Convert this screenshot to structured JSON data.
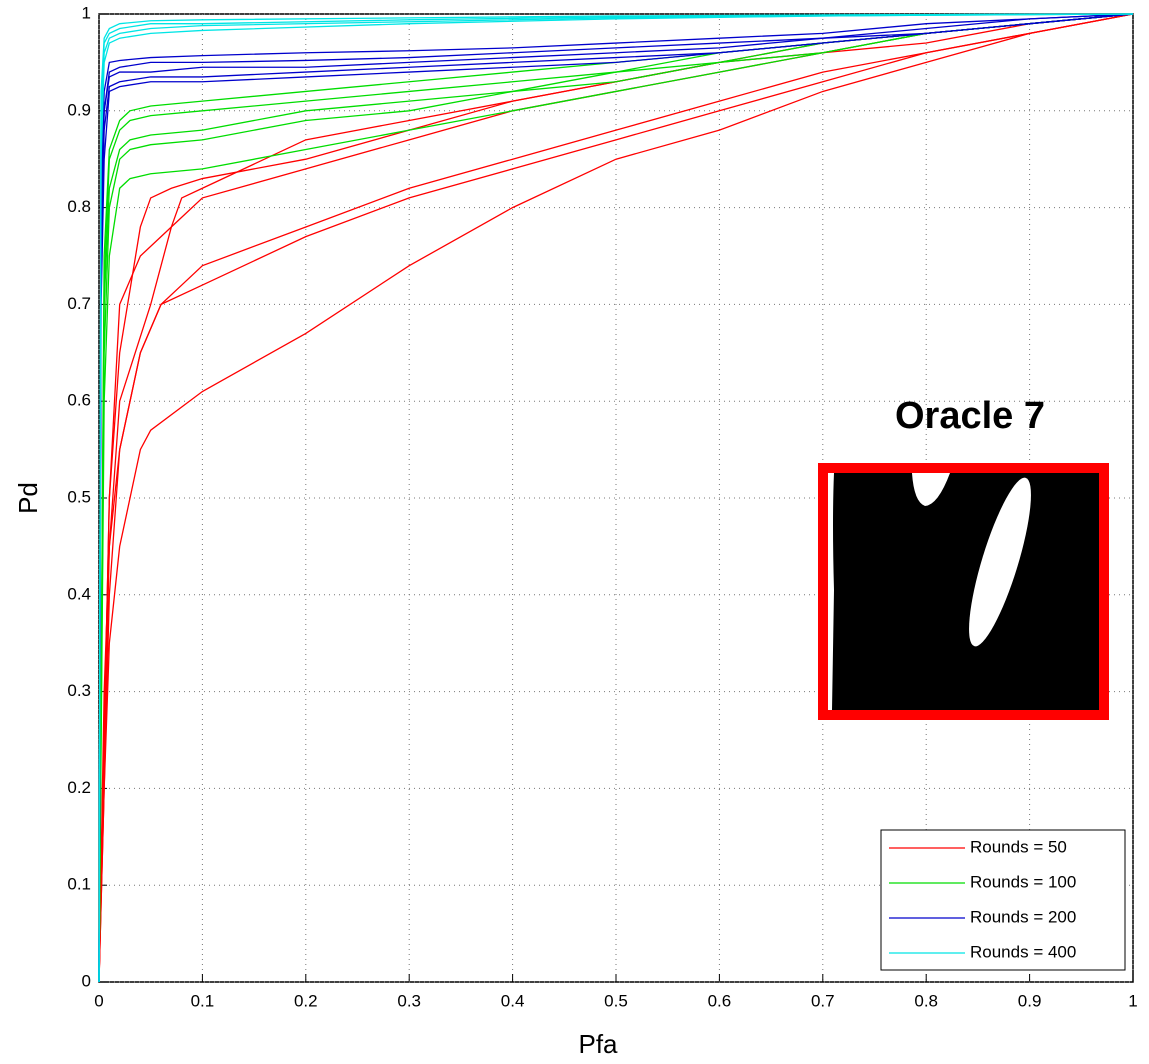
{
  "chart_data": {
    "type": "line",
    "xlabel": "Pfa",
    "ylabel": "Pd",
    "annotation": "Oracle 7",
    "xlim": [
      0,
      1
    ],
    "ylim": [
      0,
      1
    ],
    "xticks": [
      0,
      0.1,
      0.2,
      0.3,
      0.4,
      0.5,
      0.6,
      0.7,
      0.8,
      0.9,
      1
    ],
    "yticks": [
      0,
      0.1,
      0.2,
      0.3,
      0.4,
      0.5,
      0.6,
      0.7,
      0.8,
      0.9,
      1
    ],
    "grid": true,
    "legend": "lower right",
    "series": [
      {
        "name": "Rounds = 50",
        "color": "#ff0000",
        "curves": [
          {
            "x": [
              0,
              0.005,
              0.01,
              0.02,
              0.04,
              0.05,
              0.1,
              0.2,
              0.3,
              0.4,
              0.5,
              0.6,
              0.7,
              0.8,
              0.9,
              1
            ],
            "values": [
              0,
              0.2,
              0.35,
              0.45,
              0.55,
              0.57,
              0.61,
              0.67,
              0.74,
              0.8,
              0.85,
              0.88,
              0.92,
              0.95,
              0.98,
              1
            ]
          },
          {
            "x": [
              0,
              0.005,
              0.01,
              0.02,
              0.04,
              0.06,
              0.1,
              0.2,
              0.3,
              0.4,
              0.5,
              0.6,
              0.7,
              0.8,
              0.9,
              1
            ],
            "values": [
              0,
              0.3,
              0.45,
              0.55,
              0.65,
              0.7,
              0.72,
              0.77,
              0.81,
              0.84,
              0.87,
              0.9,
              0.93,
              0.96,
              0.98,
              1
            ]
          },
          {
            "x": [
              0,
              0.01,
              0.02,
              0.04,
              0.06,
              0.08,
              0.1,
              0.2,
              0.3,
              0.4,
              0.5,
              0.6,
              0.7,
              0.8,
              0.9,
              1
            ],
            "values": [
              0,
              0.4,
              0.55,
              0.65,
              0.7,
              0.72,
              0.74,
              0.78,
              0.82,
              0.85,
              0.88,
              0.91,
              0.94,
              0.96,
              0.98,
              1
            ]
          },
          {
            "x": [
              0,
              0.01,
              0.02,
              0.04,
              0.06,
              0.08,
              0.1,
              0.2,
              0.3,
              0.4,
              0.5,
              0.6,
              0.7,
              0.8,
              0.9,
              1
            ],
            "values": [
              0,
              0.5,
              0.7,
              0.75,
              0.77,
              0.79,
              0.81,
              0.84,
              0.87,
              0.9,
              0.92,
              0.94,
              0.96,
              0.97,
              0.99,
              1
            ]
          },
          {
            "x": [
              0,
              0.01,
              0.02,
              0.04,
              0.05,
              0.07,
              0.1,
              0.2,
              0.3,
              0.4,
              0.5,
              0.6,
              0.7,
              0.8,
              0.9,
              1
            ],
            "values": [
              0,
              0.5,
              0.65,
              0.78,
              0.81,
              0.82,
              0.83,
              0.85,
              0.88,
              0.91,
              0.93,
              0.95,
              0.97,
              0.98,
              0.99,
              1
            ]
          },
          {
            "x": [
              0,
              0.01,
              0.02,
              0.05,
              0.07,
              0.08,
              0.1,
              0.2,
              0.3,
              0.4,
              0.5,
              0.6,
              0.7,
              0.8,
              0.9,
              1
            ],
            "values": [
              0,
              0.45,
              0.6,
              0.7,
              0.78,
              0.81,
              0.82,
              0.87,
              0.89,
              0.91,
              0.93,
              0.95,
              0.96,
              0.98,
              0.99,
              1
            ]
          }
        ]
      },
      {
        "name": "Rounds = 100",
        "color": "#00dd00",
        "curves": [
          {
            "x": [
              0,
              0.005,
              0.01,
              0.02,
              0.03,
              0.05,
              0.1,
              0.2,
              0.3,
              0.4,
              0.5,
              0.6,
              0.7,
              0.8,
              0.9,
              1
            ],
            "values": [
              0,
              0.6,
              0.75,
              0.82,
              0.83,
              0.835,
              0.84,
              0.86,
              0.88,
              0.9,
              0.92,
              0.94,
              0.96,
              0.98,
              0.99,
              1
            ]
          },
          {
            "x": [
              0,
              0.005,
              0.01,
              0.02,
              0.03,
              0.05,
              0.1,
              0.2,
              0.3,
              0.4,
              0.5,
              0.6,
              0.7,
              0.8,
              0.9,
              1
            ],
            "values": [
              0,
              0.65,
              0.8,
              0.85,
              0.86,
              0.865,
              0.87,
              0.89,
              0.9,
              0.92,
              0.93,
              0.95,
              0.96,
              0.98,
              0.99,
              1
            ]
          },
          {
            "x": [
              0,
              0.005,
              0.01,
              0.02,
              0.03,
              0.05,
              0.1,
              0.2,
              0.3,
              0.4,
              0.5,
              0.6,
              0.7,
              0.8,
              0.9,
              1
            ],
            "values": [
              0,
              0.7,
              0.82,
              0.86,
              0.87,
              0.875,
              0.88,
              0.9,
              0.91,
              0.92,
              0.94,
              0.95,
              0.97,
              0.98,
              0.99,
              1
            ]
          },
          {
            "x": [
              0,
              0.005,
              0.01,
              0.02,
              0.03,
              0.05,
              0.1,
              0.2,
              0.3,
              0.4,
              0.5,
              0.6,
              0.7,
              0.8,
              0.9,
              1
            ],
            "values": [
              0,
              0.72,
              0.85,
              0.88,
              0.89,
              0.895,
              0.9,
              0.91,
              0.92,
              0.93,
              0.94,
              0.96,
              0.97,
              0.98,
              0.99,
              1
            ]
          },
          {
            "x": [
              0,
              0.005,
              0.01,
              0.02,
              0.03,
              0.05,
              0.1,
              0.2,
              0.3,
              0.4,
              0.5,
              0.6,
              0.7,
              0.8,
              0.9,
              1
            ],
            "values": [
              0,
              0.75,
              0.86,
              0.89,
              0.9,
              0.905,
              0.91,
              0.92,
              0.93,
              0.94,
              0.95,
              0.96,
              0.97,
              0.98,
              0.99,
              1
            ]
          }
        ]
      },
      {
        "name": "Rounds = 200",
        "color": "#0000cc",
        "curves": [
          {
            "x": [
              0,
              0.002,
              0.005,
              0.01,
              0.02,
              0.05,
              0.1,
              0.2,
              0.3,
              0.4,
              0.5,
              0.6,
              0.7,
              0.8,
              0.9,
              1
            ],
            "values": [
              0,
              0.7,
              0.85,
              0.92,
              0.925,
              0.93,
              0.93,
              0.935,
              0.94,
              0.945,
              0.95,
              0.96,
              0.97,
              0.98,
              0.99,
              1
            ]
          },
          {
            "x": [
              0,
              0.002,
              0.005,
              0.01,
              0.02,
              0.05,
              0.1,
              0.2,
              0.3,
              0.4,
              0.5,
              0.6,
              0.7,
              0.8,
              0.9,
              1
            ],
            "values": [
              0,
              0.75,
              0.88,
              0.925,
              0.93,
              0.935,
              0.935,
              0.94,
              0.945,
              0.95,
              0.955,
              0.96,
              0.97,
              0.98,
              0.99,
              1
            ]
          },
          {
            "x": [
              0,
              0.002,
              0.005,
              0.01,
              0.02,
              0.05,
              0.1,
              0.2,
              0.3,
              0.4,
              0.5,
              0.6,
              0.7,
              0.8,
              0.9,
              1
            ],
            "values": [
              0,
              0.8,
              0.9,
              0.935,
              0.94,
              0.94,
              0.945,
              0.945,
              0.95,
              0.955,
              0.96,
              0.965,
              0.975,
              0.98,
              0.99,
              1
            ]
          },
          {
            "x": [
              0,
              0.002,
              0.005,
              0.01,
              0.02,
              0.05,
              0.1,
              0.2,
              0.3,
              0.4,
              0.5,
              0.6,
              0.7,
              0.8,
              0.9,
              1
            ],
            "values": [
              0,
              0.8,
              0.9,
              0.94,
              0.945,
              0.95,
              0.95,
              0.952,
              0.955,
              0.96,
              0.965,
              0.97,
              0.975,
              0.985,
              0.995,
              1
            ]
          },
          {
            "x": [
              0,
              0.002,
              0.005,
              0.01,
              0.02,
              0.05,
              0.1,
              0.2,
              0.3,
              0.4,
              0.5,
              0.6,
              0.7,
              0.8,
              0.9,
              1
            ],
            "values": [
              0,
              0.82,
              0.92,
              0.95,
              0.952,
              0.955,
              0.957,
              0.96,
              0.962,
              0.965,
              0.97,
              0.975,
              0.98,
              0.99,
              0.995,
              1
            ]
          }
        ]
      },
      {
        "name": "Rounds = 400",
        "color": "#00e5e5",
        "curves": [
          {
            "x": [
              0,
              0.002,
              0.005,
              0.01,
              0.02,
              0.05,
              0.1,
              0.3,
              0.5,
              0.7,
              1
            ],
            "values": [
              0,
              0.85,
              0.95,
              0.97,
              0.975,
              0.98,
              0.983,
              0.99,
              0.995,
              0.998,
              1
            ]
          },
          {
            "x": [
              0,
              0.002,
              0.005,
              0.01,
              0.02,
              0.05,
              0.1,
              0.3,
              0.5,
              0.7,
              1
            ],
            "values": [
              0,
              0.88,
              0.96,
              0.975,
              0.98,
              0.985,
              0.988,
              0.992,
              0.996,
              0.998,
              1
            ]
          },
          {
            "x": [
              0,
              0.002,
              0.005,
              0.01,
              0.02,
              0.05,
              0.1,
              0.3,
              0.5,
              0.7,
              1
            ],
            "values": [
              0,
              0.9,
              0.97,
              0.98,
              0.985,
              0.99,
              0.99,
              0.994,
              0.997,
              0.999,
              1
            ]
          },
          {
            "x": [
              0,
              0.002,
              0.005,
              0.01,
              0.02,
              0.05,
              0.1,
              0.3,
              0.5,
              0.7,
              1
            ],
            "values": [
              0,
              0.92,
              0.975,
              0.985,
              0.99,
              0.993,
              0.994,
              0.996,
              0.998,
              0.999,
              1
            ]
          }
        ]
      }
    ]
  }
}
